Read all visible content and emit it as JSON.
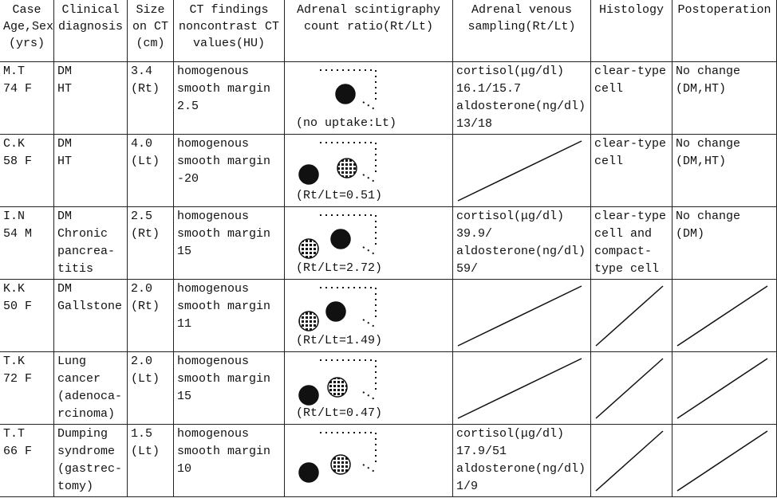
{
  "table": {
    "header": [
      [
        "Case",
        "Age,Sex",
        "(yrs)"
      ],
      [
        "Clinical",
        "diagnosis"
      ],
      [
        "Size",
        "on CT",
        "(cm)"
      ],
      [
        "CT findings",
        "noncontrast CT",
        "values(HU)"
      ],
      [
        "Adrenal scintigraphy",
        "count ratio(Rt/Lt)"
      ],
      [
        "Adrenal venous",
        "sampling(Rt/Lt)"
      ],
      [
        "Histology"
      ],
      [
        "Postoperation"
      ]
    ],
    "rows": [
      [
        [
          "M.T",
          "74 F"
        ],
        [
          "DM",
          "HT"
        ],
        [
          "3.4",
          "(Rt)"
        ],
        [
          "homogenous",
          "smooth margin",
          "2.5"
        ],
        [
          "(no uptake:Lt)"
        ],
        [
          "cortisol(μg/dl)",
          "16.1/15.7",
          "aldosterone(ng/dl)",
          "13/18"
        ],
        [
          "clear-type",
          "cell"
        ],
        [
          "No change",
          "(DM,HT)"
        ]
      ],
      [
        [
          "C.K",
          "58 F"
        ],
        [
          "DM",
          "HT"
        ],
        [
          "4.0",
          "(Lt)"
        ],
        [
          "homogenous",
          "smooth margin",
          "-20"
        ],
        [
          "(Rt/Lt=0.51)"
        ],
        null,
        [
          "clear-type",
          "cell"
        ],
        [
          "No change",
          "(DM,HT)"
        ]
      ],
      [
        [
          "I.N",
          "54 M"
        ],
        [
          "DM",
          "Chronic",
          "pancrea-",
          "titis"
        ],
        [
          "2.5",
          "(Rt)"
        ],
        [
          "homogenous",
          "smooth margin",
          "15"
        ],
        [
          "(Rt/Lt=2.72)"
        ],
        [
          "cortisol(μg/dl)",
          "39.9/",
          "aldosterone(ng/dl)",
          "59/"
        ],
        [
          "clear-type",
          "cell  and",
          "compact-",
          "type cell"
        ],
        [
          "No change",
          "(DM)"
        ]
      ],
      [
        [
          "K.K",
          "50 F"
        ],
        [
          "DM",
          "Gallstone"
        ],
        [
          "2.0",
          "(Rt)"
        ],
        [
          "homogenous",
          "smooth margin",
          "11"
        ],
        [
          "(Rt/Lt=1.49)"
        ],
        null,
        null,
        null
      ],
      [
        [
          "T.K",
          "72 F"
        ],
        [
          "Lung",
          "cancer",
          "(adenoca-",
          "rcinoma)"
        ],
        [
          "2.0",
          "(Lt)"
        ],
        [
          "homogenous",
          "smooth margin",
          "15"
        ],
        [
          "(Rt/Lt=0.47)"
        ],
        null,
        null,
        null
      ],
      [
        [
          "T.T",
          "66 F"
        ],
        [
          "Dumping",
          "syndrome",
          "(gastrec-",
          "tomy)"
        ],
        [
          "1.5",
          "(Lt)"
        ],
        [
          "homogenous",
          "smooth margin",
          "10"
        ],
        null,
        [
          "cortisol(μg/dl)",
          "17.9/51",
          "aldosterone(ng/dl)",
          "1/9"
        ],
        null,
        null
      ]
    ]
  }
}
